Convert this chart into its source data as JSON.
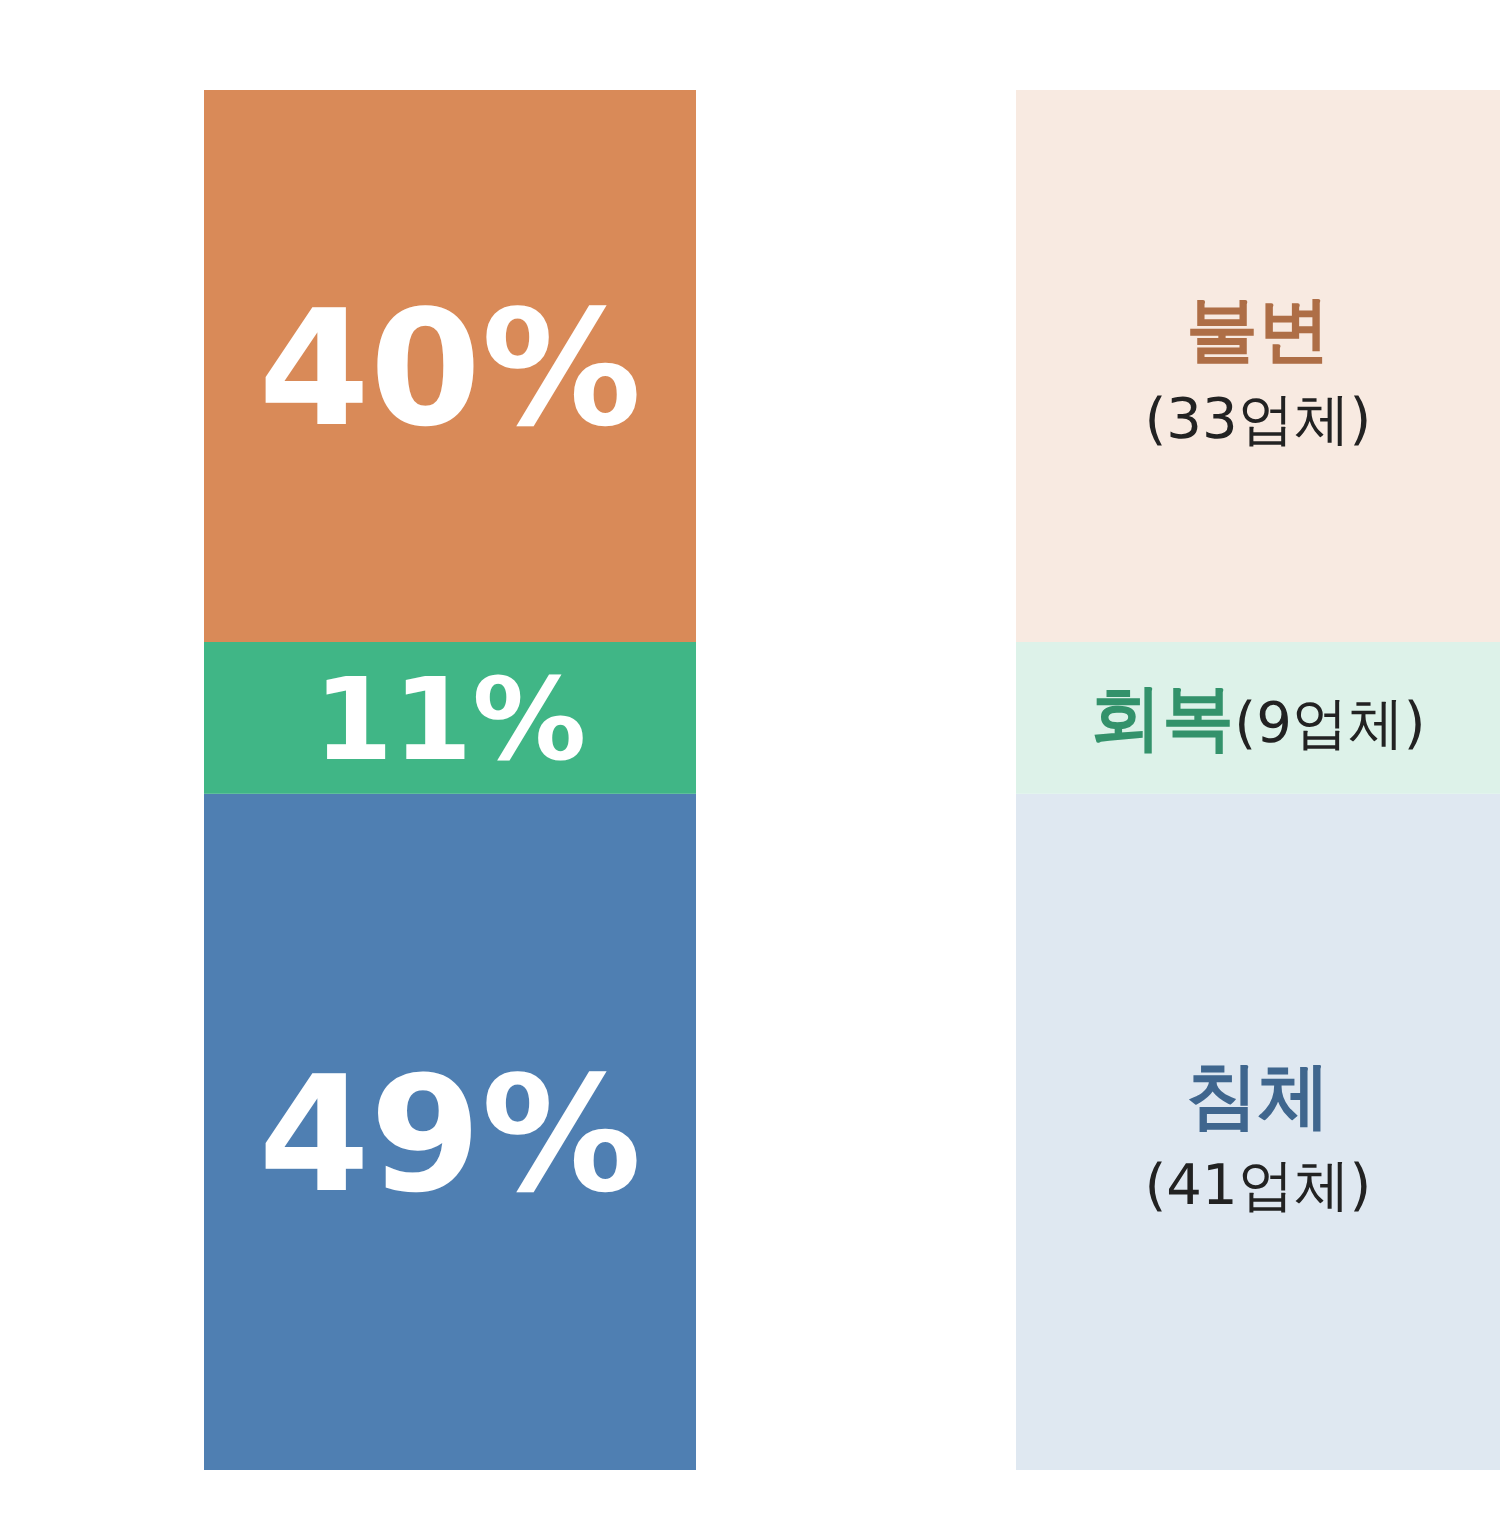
{
  "chart_data": {
    "type": "bar",
    "stacked": true,
    "categories": [
      null
    ],
    "series": [
      {
        "name": "침체",
        "color": "#4f7fb2",
        "values": [
          49
        ],
        "value_labels": [
          "49%"
        ]
      },
      {
        "name": "회복",
        "color": "#40b686",
        "values": [
          11
        ],
        "value_labels": [
          "11%"
        ]
      },
      {
        "name": "불변",
        "color": "#d98a58",
        "values": [
          40
        ],
        "value_labels": [
          "40%"
        ]
      }
    ],
    "annotations": [
      "(41업체)",
      "(9업체)",
      "(33업체)"
    ],
    "legend": "right"
  }
}
